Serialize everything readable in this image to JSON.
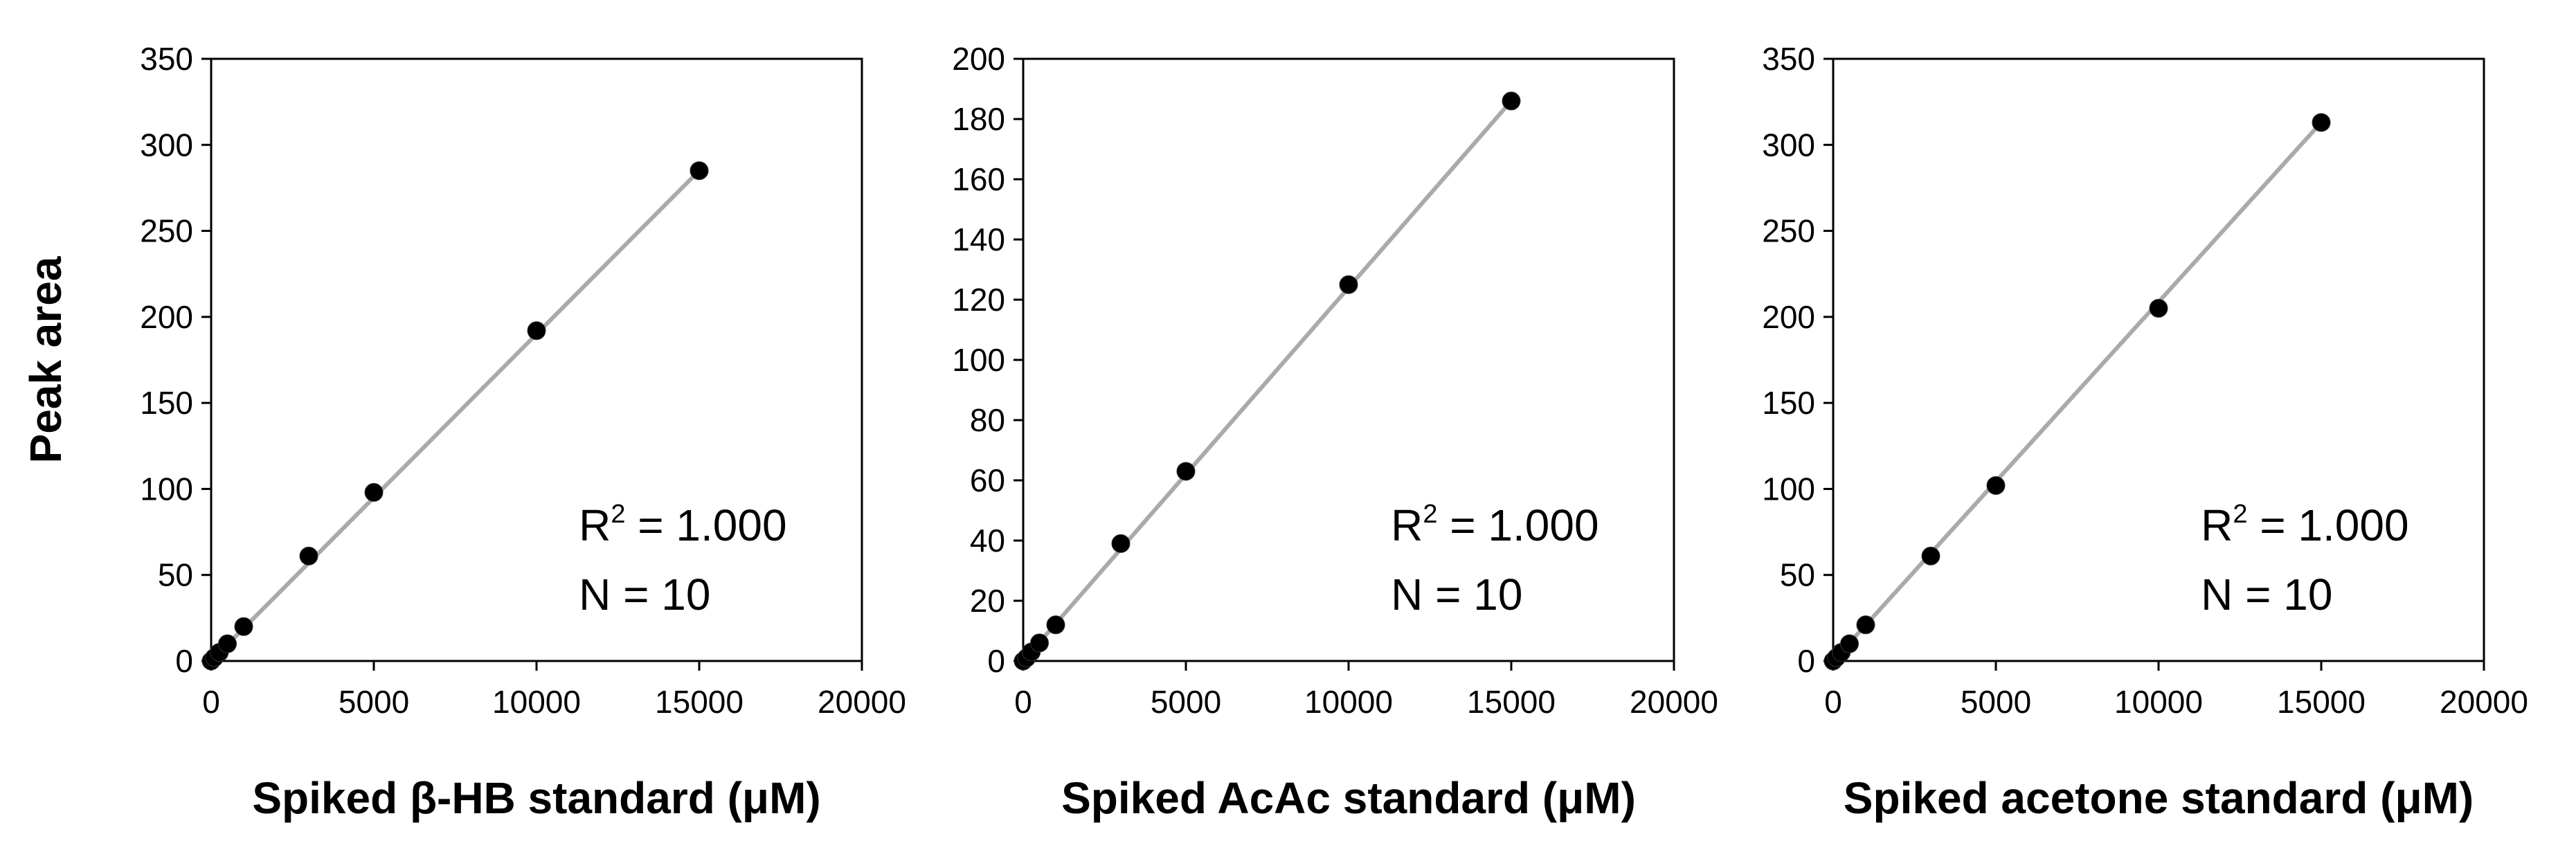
{
  "chart_data": [
    {
      "type": "scatter",
      "title": "",
      "xlabel": "Spiked β-HB standard (μM)",
      "ylabel": "Peak area",
      "xlim": [
        0,
        20000
      ],
      "ylim": [
        0,
        350
      ],
      "xticks": [
        "0",
        "5000",
        "10000",
        "15000",
        "20000"
      ],
      "yticks": [
        "0",
        "50",
        "100",
        "150",
        "200",
        "250",
        "300",
        "350"
      ],
      "x": [
        0,
        100,
        250,
        500,
        1000,
        3000,
        5000,
        10000,
        15000
      ],
      "y": [
        0,
        2,
        5,
        10,
        20,
        61,
        98,
        192,
        285
      ],
      "trendline": {
        "x": [
          0,
          15000
        ],
        "y": [
          0,
          285
        ]
      },
      "r2_label": "R",
      "r2_sup": "2",
      "r2_value": " = 1.000",
      "n_label": "N = 10",
      "grid": false,
      "legend": "none",
      "marker_color": "#000000",
      "line_color": "#aaaaaa"
    },
    {
      "type": "scatter",
      "title": "",
      "xlabel": "Spiked AcAc standard (μM)",
      "ylabel": "",
      "xlim": [
        0,
        20000
      ],
      "ylim": [
        0,
        200
      ],
      "xticks": [
        "0",
        "5000",
        "10000",
        "15000",
        "20000"
      ],
      "yticks": [
        "0",
        "20",
        "40",
        "60",
        "80",
        "100",
        "120",
        "140",
        "160",
        "180",
        "200"
      ],
      "x": [
        0,
        100,
        250,
        500,
        1000,
        3000,
        5000,
        10000,
        15000
      ],
      "y": [
        0,
        1,
        3,
        6,
        12,
        39,
        63,
        125,
        186
      ],
      "trendline": {
        "x": [
          0,
          15000
        ],
        "y": [
          0,
          186
        ]
      },
      "r2_label": "R",
      "r2_sup": "2",
      "r2_value": " = 1.000",
      "n_label": "N = 10",
      "grid": false,
      "legend": "none",
      "marker_color": "#000000",
      "line_color": "#aaaaaa"
    },
    {
      "type": "scatter",
      "title": "",
      "xlabel": "Spiked acetone standard (μM)",
      "ylabel": "",
      "xlim": [
        0,
        20000
      ],
      "ylim": [
        0,
        350
      ],
      "xticks": [
        "0",
        "5000",
        "10000",
        "15000",
        "20000"
      ],
      "yticks": [
        "0",
        "50",
        "100",
        "150",
        "200",
        "250",
        "300",
        "350"
      ],
      "x": [
        0,
        100,
        250,
        500,
        1000,
        3000,
        5000,
        10000,
        15000
      ],
      "y": [
        0,
        2,
        5,
        10,
        21,
        61,
        102,
        205,
        313
      ],
      "trendline": {
        "x": [
          0,
          15000
        ],
        "y": [
          0,
          313
        ]
      },
      "r2_label": "R",
      "r2_sup": "2",
      "r2_value": " = 1.000",
      "n_label": "N = 10",
      "grid": false,
      "legend": "none",
      "marker_color": "#000000",
      "line_color": "#aaaaaa"
    }
  ]
}
